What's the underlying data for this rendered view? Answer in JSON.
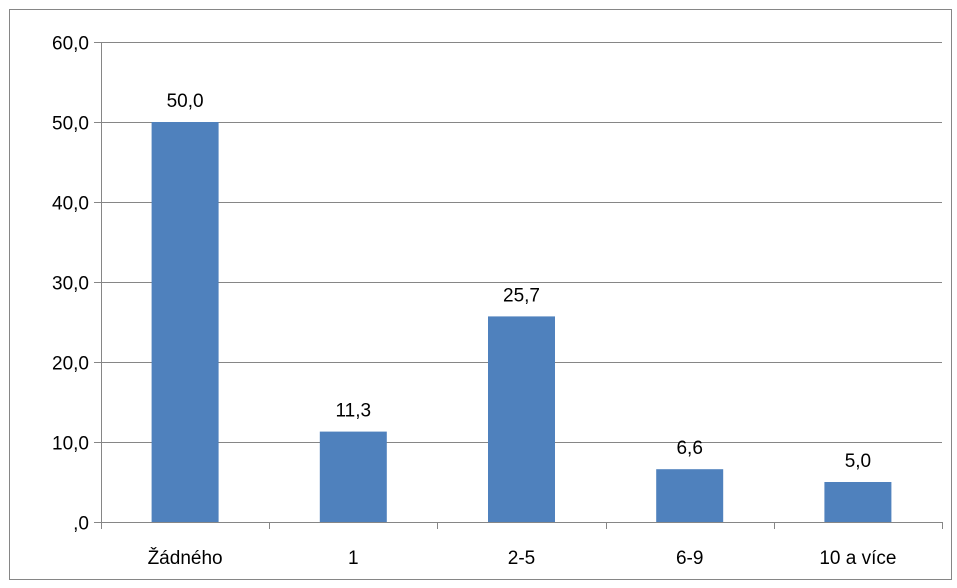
{
  "chart_data": {
    "type": "bar",
    "categories": [
      "Žádného",
      "1",
      "2-5",
      "6-9",
      "10 a více"
    ],
    "values": [
      50.0,
      11.3,
      25.7,
      6.6,
      5.0
    ],
    "value_labels": [
      "50,0",
      "11,3",
      "25,7",
      "6,6",
      "5,0"
    ],
    "y_ticks": [
      0,
      10,
      20,
      30,
      40,
      50,
      60
    ],
    "y_tick_labels": [
      ",0",
      "10,0",
      "20,0",
      "30,0",
      "40,0",
      "50,0",
      "60,0"
    ],
    "ylim": [
      0,
      60
    ],
    "title": "",
    "xlabel": "",
    "ylabel": "",
    "grid": true,
    "legend": "none",
    "colors": {
      "bar": "#4f81bd",
      "grid": "#868686",
      "axis": "#868686",
      "border": "#868686"
    }
  }
}
